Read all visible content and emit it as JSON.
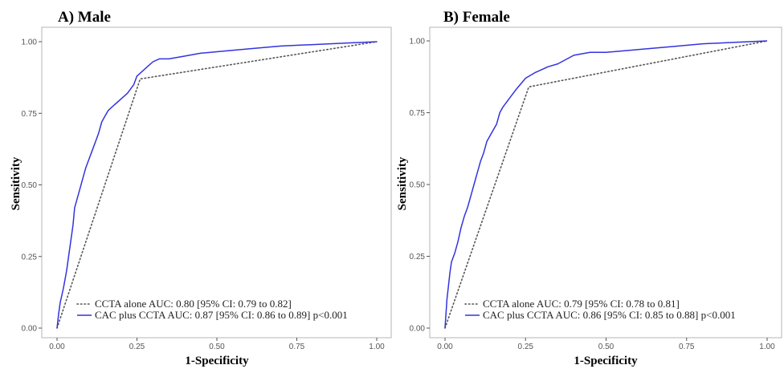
{
  "chart_data": [
    {
      "type": "line",
      "title": "A)  Male",
      "xlabel": "1-Specificity",
      "ylabel": "Sensitivity",
      "xlim": [
        0,
        1
      ],
      "ylim": [
        0,
        1
      ],
      "xticks": [
        "0.00",
        "0.25",
        "0.50",
        "0.75",
        "1.00"
      ],
      "yticks": [
        "0.00",
        "0.25",
        "0.50",
        "0.75",
        "1.00"
      ],
      "grid": false,
      "legend_position": "bottom-right",
      "series": [
        {
          "name": "CCTA alone AUC: 0.80 [95% CI: 0.79 to 0.82]",
          "style": "dotted",
          "color": "#555555",
          "x": [
            0,
            0.26,
            1
          ],
          "y": [
            0,
            0.87,
            1
          ]
        },
        {
          "name": "CAC plus CCTA  AUC: 0.87 [95% CI: 0.86 to 0.89] p<0.001",
          "style": "solid",
          "color": "#3333dd",
          "x": [
            0,
            0.005,
            0.01,
            0.02,
            0.03,
            0.04,
            0.05,
            0.055,
            0.06,
            0.07,
            0.08,
            0.09,
            0.1,
            0.11,
            0.12,
            0.13,
            0.14,
            0.15,
            0.16,
            0.17,
            0.18,
            0.19,
            0.2,
            0.22,
            0.24,
            0.25,
            0.26,
            0.28,
            0.3,
            0.32,
            0.35,
            0.4,
            0.45,
            0.5,
            0.6,
            0.7,
            0.8,
            0.9,
            1.0
          ],
          "y": [
            0,
            0.05,
            0.09,
            0.14,
            0.2,
            0.28,
            0.36,
            0.42,
            0.44,
            0.48,
            0.52,
            0.56,
            0.59,
            0.62,
            0.65,
            0.68,
            0.72,
            0.74,
            0.76,
            0.77,
            0.78,
            0.79,
            0.8,
            0.82,
            0.85,
            0.88,
            0.89,
            0.91,
            0.93,
            0.94,
            0.94,
            0.95,
            0.96,
            0.965,
            0.975,
            0.985,
            0.99,
            0.995,
            1.0
          ]
        }
      ]
    },
    {
      "type": "line",
      "title": "B) Female",
      "xlabel": "1-Specificity",
      "ylabel": "Sensitivity",
      "xlim": [
        0,
        1
      ],
      "ylim": [
        0,
        1
      ],
      "xticks": [
        "0.00",
        "0.25",
        "0.50",
        "0.75",
        "1.00"
      ],
      "yticks": [
        "0.00",
        "0.25",
        "0.50",
        "0.75",
        "1.00"
      ],
      "grid": false,
      "legend_position": "bottom-right",
      "series": [
        {
          "name": "CCTA alone AUC: 0.79 [95% CI: 0.78 to 0.81]",
          "style": "dotted",
          "color": "#555555",
          "x": [
            0,
            0.26,
            1
          ],
          "y": [
            0,
            0.84,
            1
          ]
        },
        {
          "name": "CAC plus CCTA AUC: 0.86 [95% CI: 0.85 to 0.88] p<0.001",
          "style": "solid",
          "color": "#3333dd",
          "x": [
            0,
            0.003,
            0.006,
            0.01,
            0.015,
            0.02,
            0.03,
            0.04,
            0.05,
            0.06,
            0.07,
            0.08,
            0.09,
            0.1,
            0.11,
            0.12,
            0.13,
            0.14,
            0.15,
            0.16,
            0.17,
            0.18,
            0.2,
            0.22,
            0.25,
            0.28,
            0.3,
            0.32,
            0.35,
            0.4,
            0.45,
            0.5,
            0.6,
            0.7,
            0.8,
            0.9,
            1.0
          ],
          "y": [
            0,
            0.05,
            0.1,
            0.14,
            0.19,
            0.23,
            0.26,
            0.3,
            0.35,
            0.39,
            0.42,
            0.46,
            0.5,
            0.54,
            0.58,
            0.61,
            0.65,
            0.67,
            0.69,
            0.71,
            0.75,
            0.77,
            0.8,
            0.83,
            0.87,
            0.89,
            0.9,
            0.91,
            0.92,
            0.95,
            0.96,
            0.96,
            0.97,
            0.98,
            0.99,
            0.995,
            1.0
          ]
        }
      ]
    }
  ]
}
